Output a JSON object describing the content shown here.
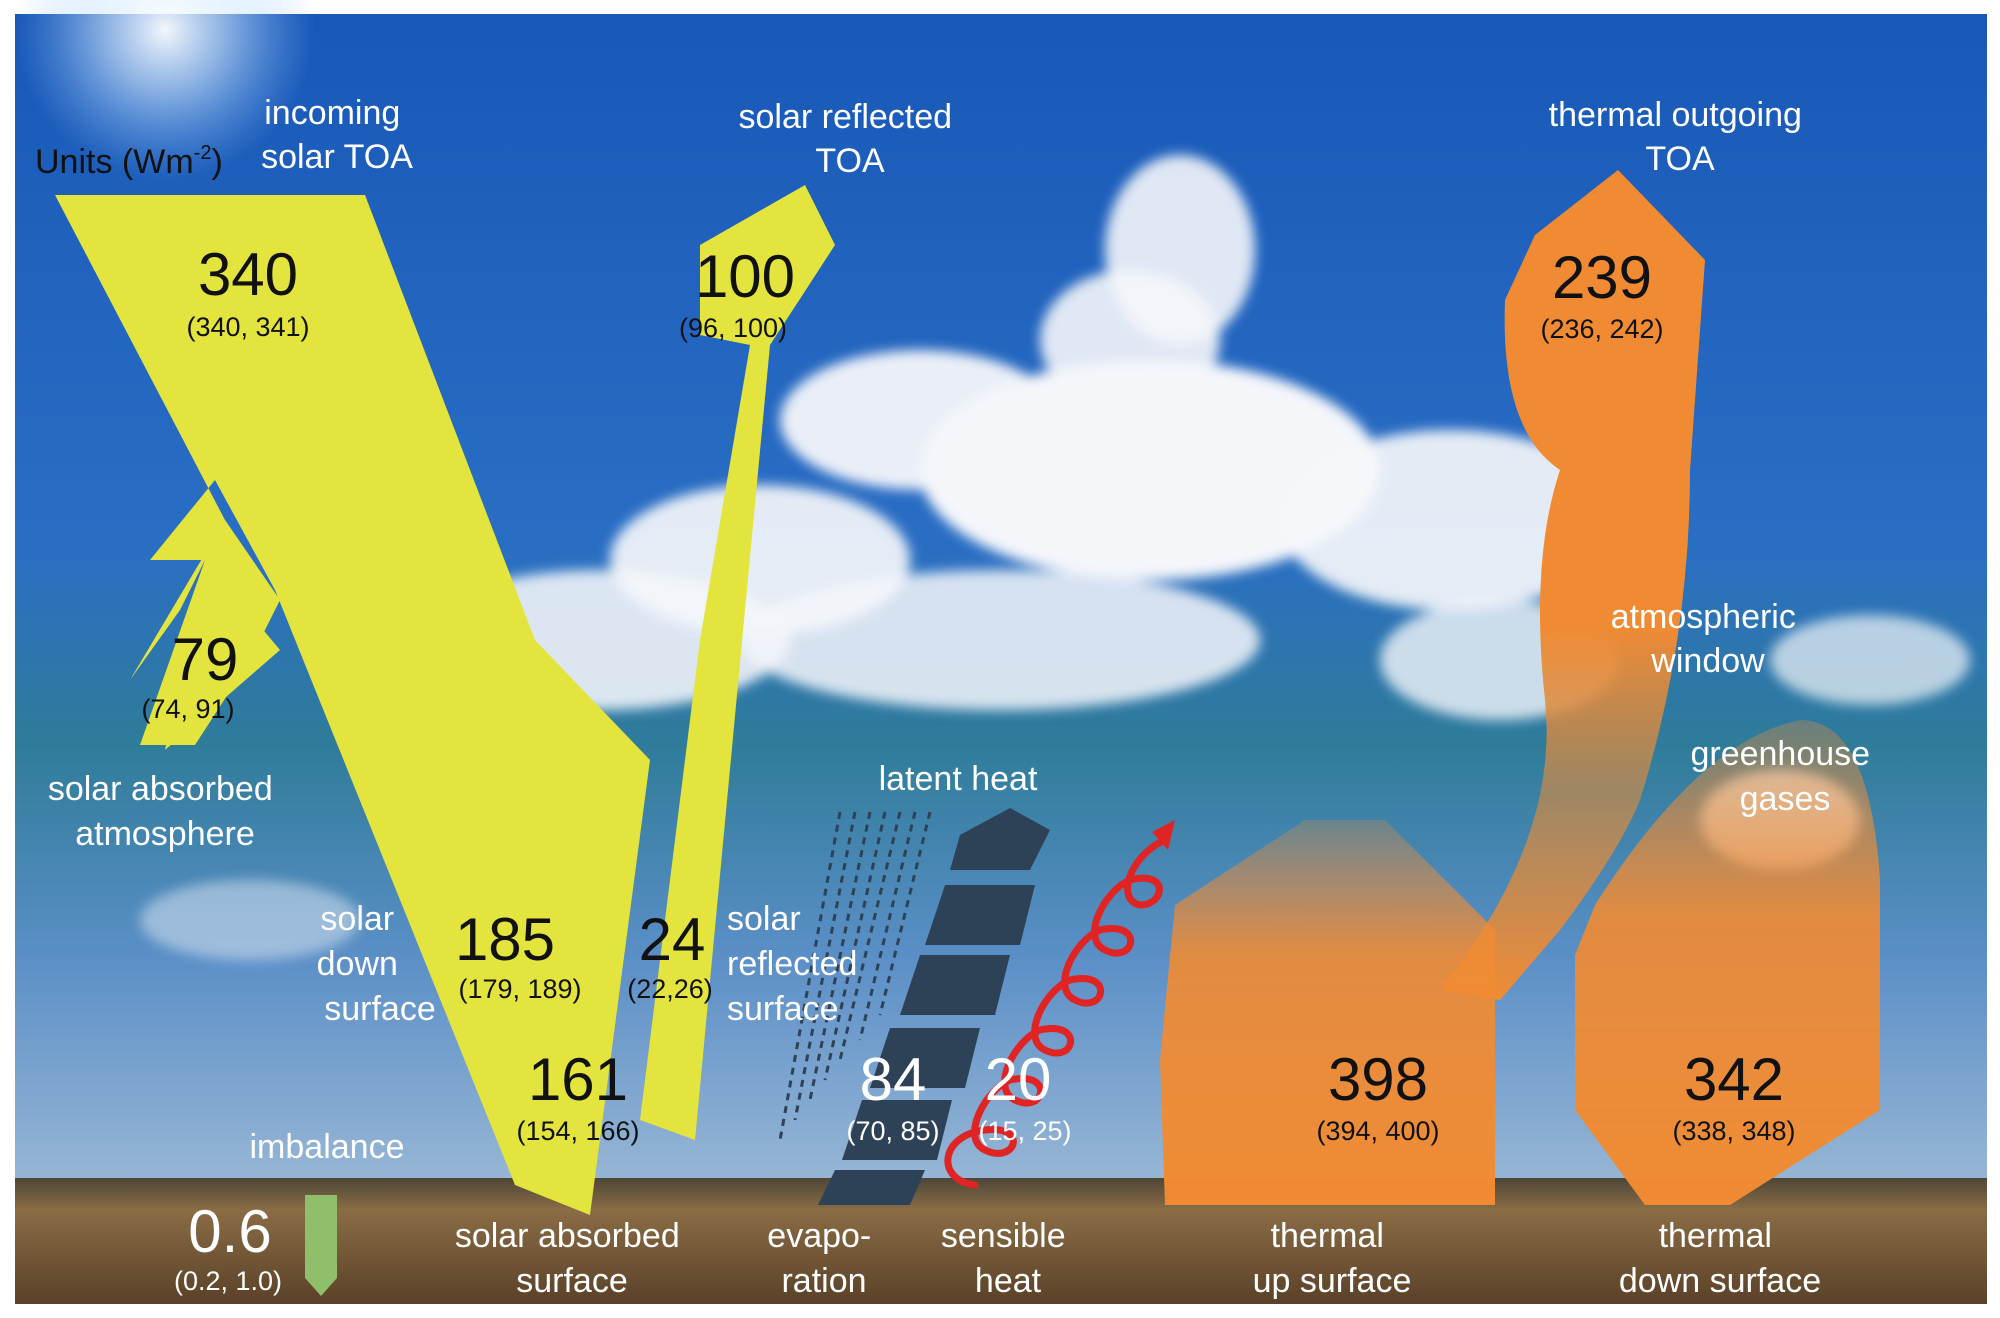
{
  "units": {
    "prefix": "Units (Wm",
    "sup": "-2",
    "suffix": ")"
  },
  "colors": {
    "solar": "#e3e43d",
    "thermal": "#f08b33",
    "sky_top": "#1a5bb5",
    "ground": "#7b6140",
    "imbalance": "#8fbf6a",
    "sensible": "#e02424",
    "latent": "#2e4257"
  },
  "incoming_solar_toa": {
    "label": [
      "incoming",
      "solar TOA"
    ],
    "value": "340",
    "range": "(340, 341)"
  },
  "solar_reflected_toa": {
    "label": [
      "solar reflected",
      "TOA"
    ],
    "value": "100",
    "range": "(96, 100)"
  },
  "thermal_outgoing_toa": {
    "label": [
      "thermal outgoing",
      "TOA"
    ],
    "value": "239",
    "range": "(236, 242)"
  },
  "solar_absorbed_atmosphere": {
    "label": [
      "solar absorbed",
      "atmosphere"
    ],
    "value": "79",
    "range": "(74, 91)"
  },
  "solar_down_surface": {
    "label": [
      "solar",
      "down",
      "surface"
    ],
    "value": "185",
    "range": "(179, 189)"
  },
  "solar_reflected_surface": {
    "label": [
      "solar",
      "reflected",
      "surface"
    ],
    "value": "24",
    "range": "(22,26)"
  },
  "solar_absorbed_surface": {
    "label": [
      "solar absorbed",
      "surface"
    ],
    "value": "161",
    "range": "(154, 166)"
  },
  "latent_heat": {
    "label": "latent heat",
    "bottom_label": [
      "evapo-",
      "ration"
    ],
    "value": "84",
    "range": "(70, 85)"
  },
  "sensible_heat": {
    "label": [
      "sensible",
      "heat"
    ],
    "value": "20",
    "range": "(15, 25)"
  },
  "thermal_up_surface": {
    "label": [
      "thermal",
      "up surface"
    ],
    "value": "398",
    "range": "(394, 400)"
  },
  "thermal_down_surface": {
    "label": [
      "thermal",
      "down surface"
    ],
    "value": "342",
    "range": "(338, 348)"
  },
  "atmospheric_window": {
    "label": [
      "atmospheric",
      "window"
    ]
  },
  "greenhouse_gases": {
    "label": [
      "greenhouse",
      "gases"
    ]
  },
  "imbalance": {
    "label": "imbalance",
    "value": "0.6",
    "range": "(0.2, 1.0)"
  }
}
